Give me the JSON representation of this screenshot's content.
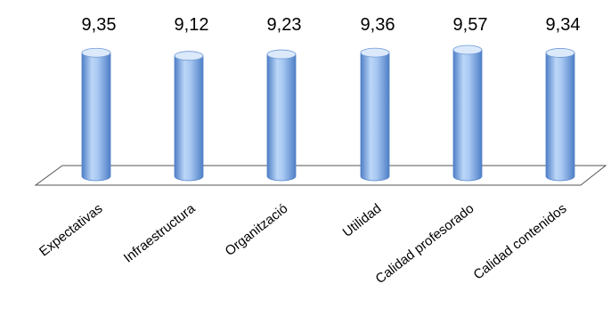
{
  "chart_data": {
    "type": "bar",
    "style": "3d-cylinder",
    "categories": [
      "Expectativas",
      "Infraestructura",
      "Organització",
      "Utilidad",
      "Calidad  profesorado",
      "Calidad contenidos"
    ],
    "values": [
      9.35,
      9.12,
      9.23,
      9.36,
      9.57,
      9.34
    ],
    "data_labels": [
      "9,35",
      "9,12",
      "9,23",
      "9,36",
      "9,57",
      "9,34"
    ],
    "title": "",
    "xlabel": "",
    "ylabel": "",
    "gridlines": false,
    "legend": "none",
    "colors": {
      "bar": "#8fb8ee",
      "bar_dark": "#4f7fc7",
      "bar_light": "#dbe9fb",
      "floor_line": "#555555"
    }
  }
}
